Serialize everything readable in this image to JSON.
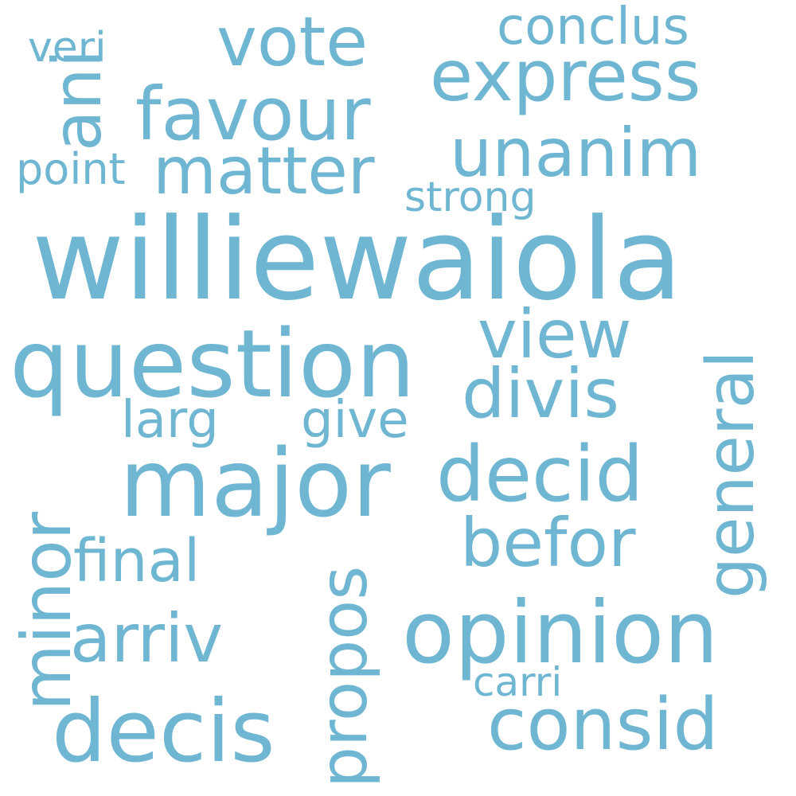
{
  "colors": {
    "word": "#6fb6d3",
    "background": "#ffffff"
  },
  "words": {
    "williewaiola": "williewaiola",
    "question": "question",
    "major": "major",
    "opinion": "opinion",
    "decis": "decis",
    "favour": "favour",
    "express": "express",
    "vote": "vote",
    "matter": "matter",
    "unanim": "unanim",
    "decid": "decid",
    "divis": "divis",
    "befor": "befor",
    "consid": "consid",
    "view": "view",
    "arriv": "arriv",
    "minor": "minor",
    "propos": "propos",
    "general": "general",
    "ani": "ani",
    "conclus": "conclus",
    "final": "final",
    "larg": "larg",
    "give": "give",
    "strong": "strong",
    "point": "point",
    "veri": "veri",
    "carri": "carri"
  }
}
